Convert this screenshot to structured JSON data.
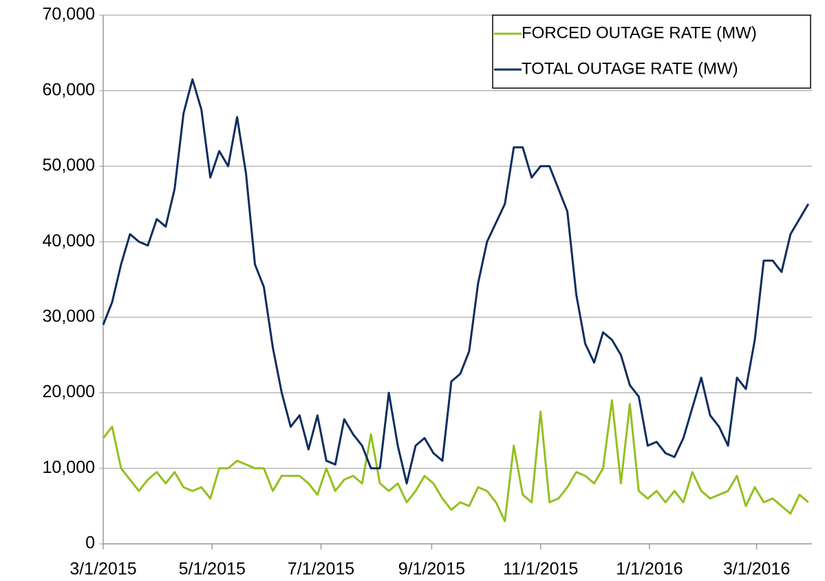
{
  "chart_data": {
    "type": "line",
    "x": [
      "3/1/2015",
      "3/6/2015",
      "3/11/2015",
      "3/16/2015",
      "3/21/2015",
      "3/26/2015",
      "3/31/2015",
      "4/5/2015",
      "4/10/2015",
      "4/15/2015",
      "4/20/2015",
      "4/25/2015",
      "4/30/2015",
      "5/5/2015",
      "5/10/2015",
      "5/15/2015",
      "5/20/2015",
      "5/25/2015",
      "5/30/2015",
      "6/4/2015",
      "6/9/2015",
      "6/14/2015",
      "6/19/2015",
      "6/24/2015",
      "6/29/2015",
      "7/4/2015",
      "7/9/2015",
      "7/14/2015",
      "7/19/2015",
      "7/24/2015",
      "7/29/2015",
      "8/3/2015",
      "8/8/2015",
      "8/13/2015",
      "8/18/2015",
      "8/23/2015",
      "8/28/2015",
      "9/2/2015",
      "9/7/2015",
      "9/12/2015",
      "9/17/2015",
      "9/22/2015",
      "9/27/2015",
      "10/2/2015",
      "10/7/2015",
      "10/12/2015",
      "10/17/2015",
      "10/22/2015",
      "10/27/2015",
      "11/1/2015",
      "11/6/2015",
      "11/11/2015",
      "11/16/2015",
      "11/21/2015",
      "11/26/2015",
      "12/1/2015",
      "12/6/2015",
      "12/11/2015",
      "12/16/2015",
      "12/21/2015",
      "12/26/2015",
      "12/31/2015",
      "1/5/2016",
      "1/10/2016",
      "1/15/2016",
      "1/20/2016",
      "1/25/2016",
      "1/30/2016",
      "2/4/2016",
      "2/9/2016",
      "2/14/2016",
      "2/19/2016",
      "2/24/2016",
      "2/29/2016",
      "3/5/2016",
      "3/10/2016",
      "3/15/2016",
      "3/20/2016",
      "3/25/2016",
      "3/30/2016"
    ],
    "series": [
      {
        "name": "FORCED OUTAGE RATE (MW)",
        "color": "#93c01f",
        "values": [
          14000,
          15500,
          10000,
          8500,
          7000,
          8500,
          9500,
          8000,
          9500,
          7500,
          7000,
          7500,
          6000,
          10000,
          10000,
          11000,
          10500,
          10000,
          10000,
          7000,
          9000,
          9000,
          9000,
          8000,
          6500,
          10000,
          7000,
          8500,
          9000,
          8000,
          14500,
          8000,
          7000,
          8000,
          5500,
          7000,
          9000,
          8000,
          6000,
          4500,
          5500,
          5000,
          7500,
          7000,
          5500,
          3000,
          13000,
          6500,
          5500,
          17500,
          5500,
          6000,
          7500,
          9500,
          9000,
          8000,
          10000,
          19000,
          8000,
          18500,
          7000,
          6000,
          7000,
          5500,
          7000,
          5500,
          9500,
          7000,
          6000,
          6500,
          7000,
          9000,
          5000,
          7500,
          5500,
          6000,
          5000,
          4000,
          6500,
          5500
        ]
      },
      {
        "name": "TOTAL OUTAGE RATE (MW)",
        "color": "#0d2d5e",
        "values": [
          29000,
          32000,
          37000,
          41000,
          40000,
          39500,
          43000,
          42000,
          47000,
          57000,
          61500,
          57500,
          48500,
          52000,
          50000,
          56500,
          49000,
          37000,
          34000,
          26000,
          20000,
          15500,
          17000,
          12500,
          17000,
          11000,
          10500,
          16500,
          14500,
          13000,
          10000,
          10000,
          20000,
          13000,
          8000,
          13000,
          14000,
          12000,
          11000,
          21500,
          22500,
          25500,
          34500,
          40000,
          42500,
          45000,
          52500,
          52500,
          48500,
          50000,
          50000,
          47000,
          44000,
          33000,
          26500,
          24000,
          28000,
          27000,
          25000,
          21000,
          19500,
          13000,
          13500,
          12000,
          11500,
          14000,
          18000,
          22000,
          17000,
          15500,
          13000,
          22000,
          20500,
          27000,
          37500,
          37500,
          36000,
          41000,
          43000,
          45000
        ]
      }
    ],
    "xlim": [
      "3/1/2015",
      "4/1/2016"
    ],
    "xticks": [
      "3/1/2015",
      "5/1/2015",
      "7/1/2015",
      "9/1/2015",
      "11/1/2015",
      "1/1/2016",
      "3/1/2016"
    ],
    "ylim": [
      0,
      70000
    ],
    "yticks": [
      0,
      {
        "value": 10000,
        "label": "10,000"
      },
      {
        "value": 20000,
        "label": "20,000"
      },
      {
        "value": 30000,
        "label": "30,000"
      },
      {
        "value": 40000,
        "label": "40,000"
      },
      {
        "value": 50000,
        "label": "50,000"
      },
      {
        "value": 60000,
        "label": "60,000"
      },
      {
        "value": 70000,
        "label": "70,000"
      }
    ],
    "grid": true,
    "legend": "upper right"
  }
}
